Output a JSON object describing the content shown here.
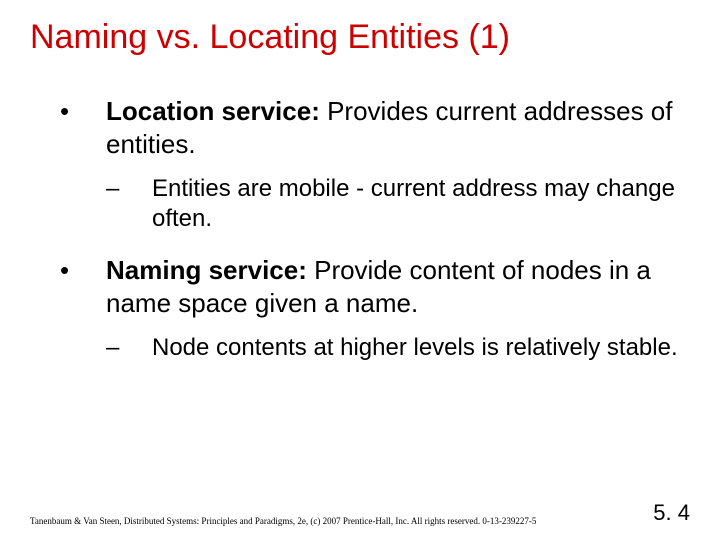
{
  "title": "Naming vs. Locating Entities (1)",
  "bullets": [
    {
      "mark": "•",
      "bold": "Location service:",
      "rest": " Provides current addresses of entities.",
      "sub": {
        "mark": "–",
        "text": "Entities are mobile - current address may change often."
      }
    },
    {
      "mark": "•",
      "bold": "Naming service:",
      "rest": " Provide content of nodes in a name space given a name.",
      "sub": {
        "mark": "–",
        "text": "Node contents at higher levels is relatively stable."
      }
    }
  ],
  "footer_left": "Tanenbaum & Van Steen, Distributed Systems: Principles and Paradigms, 2e, (c) 2007 Prentice-Hall, Inc. All rights reserved. 0-13-239227-5",
  "footer_right": "5. 4",
  "colors": {
    "title": "#cc0000",
    "text": "#000000",
    "background": "#ffffff"
  },
  "typography": {
    "title_fontsize": 34,
    "body_fontsize": 26,
    "sub_fontsize": 24,
    "footer_left_fontsize": 9,
    "footer_right_fontsize": 22
  }
}
